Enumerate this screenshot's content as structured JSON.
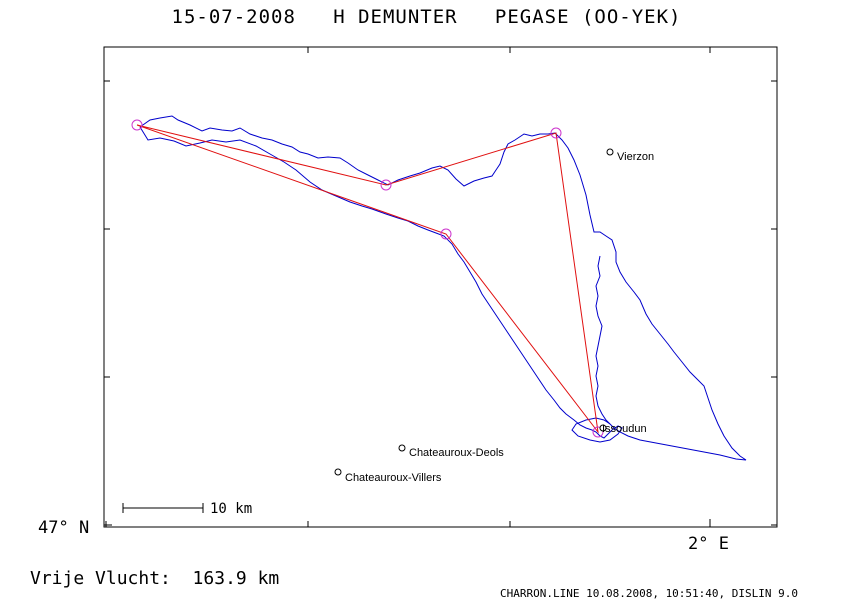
{
  "title": "15-07-2008   H DEMUNTER   PEGASE (OO-YEK)",
  "axes": {
    "lat_label": "47° N",
    "lon_label": "2° E"
  },
  "scale_bar": {
    "label": "10 km"
  },
  "places": [
    {
      "name": "Vierzon"
    },
    {
      "name": "Issoudun"
    },
    {
      "name": "Chateauroux-Deols"
    },
    {
      "name": "Chateauroux-Villers"
    }
  ],
  "footer": {
    "distance": "Vrije Vlucht:  163.9 km",
    "credits": "CHARRON.LINE 10.08.2008, 10:51:40, DISLIN 9.0"
  },
  "colors": {
    "track": "#0000cc",
    "task": "#e01010",
    "turnpoint": "#cc33cc",
    "frame": "#000000"
  }
}
